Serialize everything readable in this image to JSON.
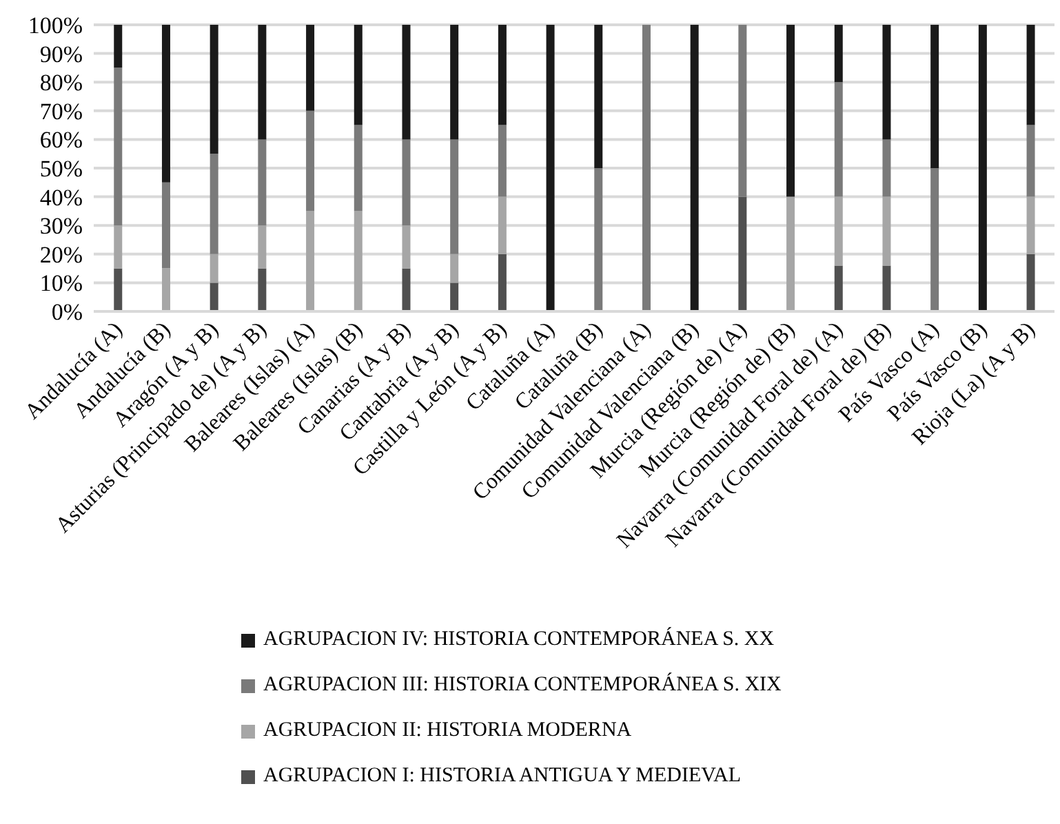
{
  "chart_data": {
    "type": "bar",
    "stacked": true,
    "categories": [
      "Andalucía (A)",
      "Andalucía (B)",
      "Aragón (A y B)",
      "Asturias (Principado de) (A y B)",
      "Baleares (Islas) (A)",
      "Baleares (Islas) (B)",
      "Canarias (A y B)",
      "Cantabria (A y B)",
      "Castilla y León (A y B)",
      "Cataluña (A)",
      "Cataluña (B)",
      "Comunidad Valenciana (A)",
      "Comunidad Valenciana (B)",
      "Murcia (Región de) (A)",
      "Murcia (Región de) (B)",
      "Navarra (Comunidad Foral de) (A)",
      "Navarra (Comunidad Foral de) (B)",
      "País Vasco (A)",
      "País Vasco (B)",
      "Rioja (La) (A y B)"
    ],
    "series": [
      {
        "name": "AGRUPACION I: HISTORIA ANTIGUA Y MEDIEVAL",
        "color": "#505050",
        "values": [
          15,
          0,
          10,
          15,
          0,
          0,
          15,
          10,
          20,
          0,
          0,
          0,
          0,
          40,
          0,
          16,
          16,
          0,
          0,
          20
        ]
      },
      {
        "name": "AGRUPACION II: HISTORIA MODERNA",
        "color": "#a6a6a6",
        "values": [
          15,
          15,
          10,
          15,
          35,
          35,
          15,
          10,
          20,
          0,
          0,
          0,
          0,
          0,
          40,
          24,
          24,
          0,
          0,
          20
        ]
      },
      {
        "name": "AGRUPACION III: HISTORIA CONTEMPORÁNEA S. XIX",
        "color": "#7a7a7a",
        "values": [
          55,
          30,
          35,
          30,
          35,
          30,
          30,
          40,
          25,
          0,
          50,
          100,
          0,
          60,
          0,
          40,
          20,
          50,
          0,
          25
        ]
      },
      {
        "name": "AGRUPACION IV: HISTORIA CONTEMPORÁNEA S. XX",
        "color": "#1a1a1a",
        "values": [
          15,
          55,
          45,
          40,
          30,
          35,
          40,
          40,
          35,
          100,
          50,
          0,
          100,
          0,
          60,
          20,
          40,
          50,
          100,
          35
        ]
      }
    ],
    "ylim": [
      0,
      100
    ],
    "yticks": [
      {
        "value": 0,
        "label": "0%"
      },
      {
        "value": 10,
        "label": "10%"
      },
      {
        "value": 20,
        "label": "20%"
      },
      {
        "value": 30,
        "label": "30%"
      },
      {
        "value": 40,
        "label": "40%"
      },
      {
        "value": 50,
        "label": "50%"
      },
      {
        "value": 60,
        "label": "60%"
      },
      {
        "value": 70,
        "label": "70%"
      },
      {
        "value": 80,
        "label": "80%"
      },
      {
        "value": 90,
        "label": "90%"
      },
      {
        "value": 100,
        "label": "100%"
      }
    ],
    "grid": "y",
    "legend": "bottom"
  }
}
